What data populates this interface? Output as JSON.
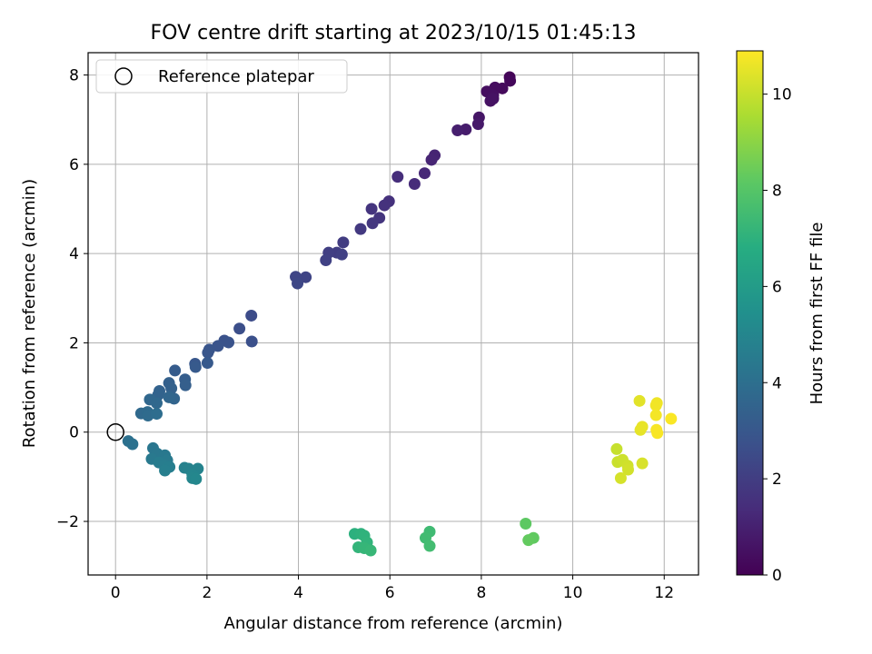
{
  "chart_data": {
    "type": "scatter",
    "title": "FOV centre drift starting at 2023/10/15 01:45:13",
    "xlabel": "Angular distance from reference (arcmin)",
    "ylabel": "Rotation from reference (arcmin)",
    "xlim": [
      -0.6,
      12.75
    ],
    "ylim": [
      -3.2,
      8.5
    ],
    "xticks": [
      0,
      2,
      4,
      6,
      8,
      10,
      12
    ],
    "xtick_labels": [
      "0",
      "2",
      "4",
      "6",
      "8",
      "10",
      "12"
    ],
    "yticks": [
      -2,
      0,
      2,
      4,
      6,
      8
    ],
    "ytick_labels": [
      "−2",
      "0",
      "2",
      "4",
      "6",
      "8"
    ],
    "grid": true,
    "legend": {
      "position": "top-left",
      "entries": [
        "Reference platepar"
      ]
    },
    "reference_point": {
      "x": 0,
      "y": 0,
      "label": "Reference platepar"
    },
    "colorbar": {
      "label": "Hours from first FF file",
      "colormap": "viridis",
      "range": [
        0,
        10.9
      ],
      "ticks": [
        0,
        2,
        4,
        6,
        8,
        10
      ],
      "tick_labels": [
        "0",
        "2",
        "4",
        "6",
        "8",
        "10"
      ]
    },
    "points": [
      {
        "x": 8.62,
        "y": 7.95,
        "h": 0.1
      },
      {
        "x": 8.63,
        "y": 7.87,
        "h": 0.2
      },
      {
        "x": 8.46,
        "y": 7.7,
        "h": 0.3
      },
      {
        "x": 8.3,
        "y": 7.72,
        "h": 0.35
      },
      {
        "x": 8.12,
        "y": 7.63,
        "h": 0.4
      },
      {
        "x": 8.26,
        "y": 7.55,
        "h": 0.45
      },
      {
        "x": 8.2,
        "y": 7.42,
        "h": 0.5
      },
      {
        "x": 8.26,
        "y": 7.47,
        "h": 0.55
      },
      {
        "x": 7.95,
        "y": 7.05,
        "h": 0.65
      },
      {
        "x": 7.93,
        "y": 6.9,
        "h": 0.75
      },
      {
        "x": 7.66,
        "y": 6.78,
        "h": 0.85
      },
      {
        "x": 7.48,
        "y": 6.76,
        "h": 0.95
      },
      {
        "x": 6.98,
        "y": 6.2,
        "h": 1.1
      },
      {
        "x": 6.91,
        "y": 6.1,
        "h": 1.15
      },
      {
        "x": 6.76,
        "y": 5.8,
        "h": 1.25
      },
      {
        "x": 6.54,
        "y": 5.56,
        "h": 1.35
      },
      {
        "x": 6.17,
        "y": 5.72,
        "h": 1.45
      },
      {
        "x": 5.98,
        "y": 5.17,
        "h": 1.55
      },
      {
        "x": 5.88,
        "y": 5.08,
        "h": 1.6
      },
      {
        "x": 5.6,
        "y": 5.0,
        "h": 1.65
      },
      {
        "x": 5.77,
        "y": 4.8,
        "h": 1.7
      },
      {
        "x": 5.62,
        "y": 4.68,
        "h": 1.75
      },
      {
        "x": 5.36,
        "y": 4.55,
        "h": 1.85
      },
      {
        "x": 4.98,
        "y": 4.25,
        "h": 1.95
      },
      {
        "x": 4.84,
        "y": 4.02,
        "h": 2.0
      },
      {
        "x": 4.66,
        "y": 4.02,
        "h": 2.05
      },
      {
        "x": 4.95,
        "y": 3.98,
        "h": 2.1
      },
      {
        "x": 4.6,
        "y": 3.85,
        "h": 2.15
      },
      {
        "x": 4.16,
        "y": 3.47,
        "h": 2.25
      },
      {
        "x": 3.94,
        "y": 3.48,
        "h": 2.3
      },
      {
        "x": 3.98,
        "y": 3.33,
        "h": 2.35
      },
      {
        "x": 2.97,
        "y": 2.61,
        "h": 2.55
      },
      {
        "x": 2.71,
        "y": 2.32,
        "h": 2.65
      },
      {
        "x": 2.98,
        "y": 2.03,
        "h": 2.7
      },
      {
        "x": 2.38,
        "y": 2.05,
        "h": 2.75
      },
      {
        "x": 2.47,
        "y": 2.01,
        "h": 2.8
      },
      {
        "x": 2.24,
        "y": 1.93,
        "h": 2.85
      },
      {
        "x": 2.05,
        "y": 1.85,
        "h": 2.9
      },
      {
        "x": 2.02,
        "y": 1.78,
        "h": 2.95
      },
      {
        "x": 1.74,
        "y": 1.53,
        "h": 3.0
      },
      {
        "x": 2.01,
        "y": 1.55,
        "h": 3.05
      },
      {
        "x": 1.75,
        "y": 1.46,
        "h": 3.1
      },
      {
        "x": 1.3,
        "y": 1.38,
        "h": 3.2
      },
      {
        "x": 1.52,
        "y": 1.18,
        "h": 3.25
      },
      {
        "x": 1.53,
        "y": 1.05,
        "h": 3.3
      },
      {
        "x": 1.17,
        "y": 1.1,
        "h": 3.35
      },
      {
        "x": 1.22,
        "y": 0.98,
        "h": 3.4
      },
      {
        "x": 0.96,
        "y": 0.92,
        "h": 3.45
      },
      {
        "x": 0.93,
        "y": 0.83,
        "h": 3.5
      },
      {
        "x": 1.28,
        "y": 0.75,
        "h": 3.55
      },
      {
        "x": 1.17,
        "y": 0.78,
        "h": 3.6
      },
      {
        "x": 0.75,
        "y": 0.73,
        "h": 3.65
      },
      {
        "x": 0.9,
        "y": 0.65,
        "h": 3.7
      },
      {
        "x": 0.56,
        "y": 0.42,
        "h": 3.75
      },
      {
        "x": 0.7,
        "y": 0.45,
        "h": 3.8
      },
      {
        "x": 0.71,
        "y": 0.37,
        "h": 3.85
      },
      {
        "x": 0.9,
        "y": 0.41,
        "h": 3.9
      },
      {
        "x": 0.28,
        "y": -0.2,
        "h": 4.05
      },
      {
        "x": 0.37,
        "y": -0.27,
        "h": 4.1
      },
      {
        "x": 0.82,
        "y": -0.36,
        "h": 4.3
      },
      {
        "x": 0.91,
        "y": -0.48,
        "h": 4.35
      },
      {
        "x": 1.08,
        "y": -0.52,
        "h": 4.4
      },
      {
        "x": 0.79,
        "y": -0.6,
        "h": 4.45
      },
      {
        "x": 1.13,
        "y": -0.63,
        "h": 4.5
      },
      {
        "x": 0.95,
        "y": -0.68,
        "h": 4.55
      },
      {
        "x": 1.07,
        "y": -0.75,
        "h": 4.6
      },
      {
        "x": 1.18,
        "y": -0.78,
        "h": 4.65
      },
      {
        "x": 1.08,
        "y": -0.86,
        "h": 4.7
      },
      {
        "x": 1.51,
        "y": -0.8,
        "h": 4.8
      },
      {
        "x": 1.6,
        "y": -0.82,
        "h": 4.85
      },
      {
        "x": 1.8,
        "y": -0.82,
        "h": 4.9
      },
      {
        "x": 1.68,
        "y": -0.95,
        "h": 4.95
      },
      {
        "x": 1.68,
        "y": -1.03,
        "h": 5.0
      },
      {
        "x": 1.76,
        "y": -1.05,
        "h": 5.05
      },
      {
        "x": 5.23,
        "y": -2.28,
        "h": 6.95
      },
      {
        "x": 5.37,
        "y": -2.28,
        "h": 7.0
      },
      {
        "x": 5.44,
        "y": -2.32,
        "h": 7.05
      },
      {
        "x": 5.5,
        "y": -2.47,
        "h": 7.1
      },
      {
        "x": 5.31,
        "y": -2.58,
        "h": 7.15
      },
      {
        "x": 5.44,
        "y": -2.6,
        "h": 7.2
      },
      {
        "x": 5.58,
        "y": -2.65,
        "h": 7.25
      },
      {
        "x": 6.87,
        "y": -2.23,
        "h": 7.45
      },
      {
        "x": 6.78,
        "y": -2.37,
        "h": 7.5
      },
      {
        "x": 6.87,
        "y": -2.55,
        "h": 7.55
      },
      {
        "x": 8.97,
        "y": -2.05,
        "h": 8.2
      },
      {
        "x": 9.14,
        "y": -2.37,
        "h": 8.25
      },
      {
        "x": 9.03,
        "y": -2.42,
        "h": 8.3
      },
      {
        "x": 10.96,
        "y": -0.38,
        "h": 10.0
      },
      {
        "x": 10.98,
        "y": -0.67,
        "h": 10.05
      },
      {
        "x": 11.09,
        "y": -0.62,
        "h": 10.1
      },
      {
        "x": 11.2,
        "y": -0.75,
        "h": 10.15
      },
      {
        "x": 11.21,
        "y": -0.84,
        "h": 10.2
      },
      {
        "x": 11.05,
        "y": -1.03,
        "h": 10.25
      },
      {
        "x": 11.52,
        "y": -0.7,
        "h": 10.3
      },
      {
        "x": 11.46,
        "y": 0.7,
        "h": 10.45
      },
      {
        "x": 11.48,
        "y": 0.05,
        "h": 10.5
      },
      {
        "x": 11.52,
        "y": 0.12,
        "h": 10.55
      },
      {
        "x": 11.84,
        "y": 0.65,
        "h": 10.65
      },
      {
        "x": 11.82,
        "y": 0.6,
        "h": 10.7
      },
      {
        "x": 11.82,
        "y": 0.38,
        "h": 10.75
      },
      {
        "x": 11.83,
        "y": 0.05,
        "h": 10.8
      },
      {
        "x": 11.85,
        "y": -0.02,
        "h": 10.82
      },
      {
        "x": 12.15,
        "y": 0.3,
        "h": 10.85
      }
    ]
  }
}
